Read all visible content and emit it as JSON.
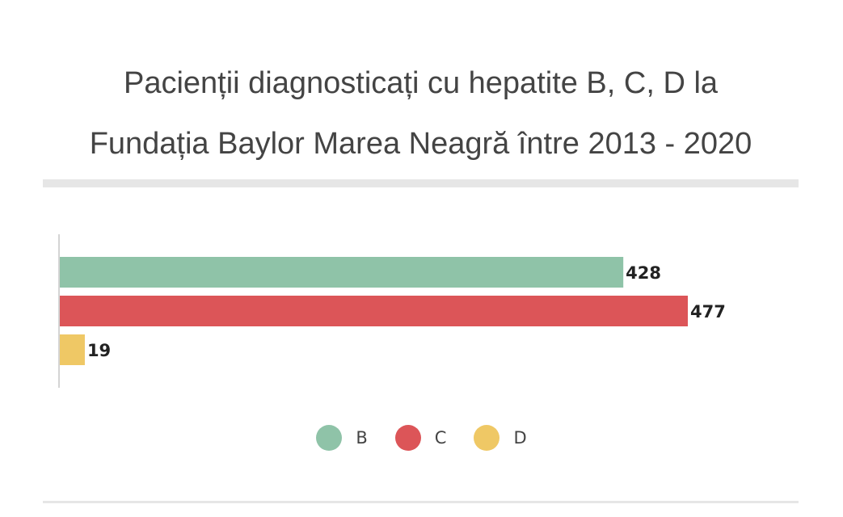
{
  "header": {
    "title_line1": "Pacienții diagnosticați cu hepatite B, C, D la",
    "title_line2": "Fundația Baylor Marea Neagră între 2013 - 2020"
  },
  "chart_data": {
    "type": "bar",
    "orientation": "horizontal",
    "title": "Pacienții diagnosticați cu hepatite B, C, D la Fundația Baylor Marea Neagră între 2013 - 2020",
    "xlim": [
      0,
      500
    ],
    "grid": false,
    "legend_position": "bottom-center",
    "series": [
      {
        "name": "B",
        "value": 428,
        "color": "#8fc3a8"
      },
      {
        "name": "C",
        "value": 477,
        "color": "#dc5558"
      },
      {
        "name": "D",
        "value": 19,
        "color": "#efc865"
      }
    ]
  }
}
